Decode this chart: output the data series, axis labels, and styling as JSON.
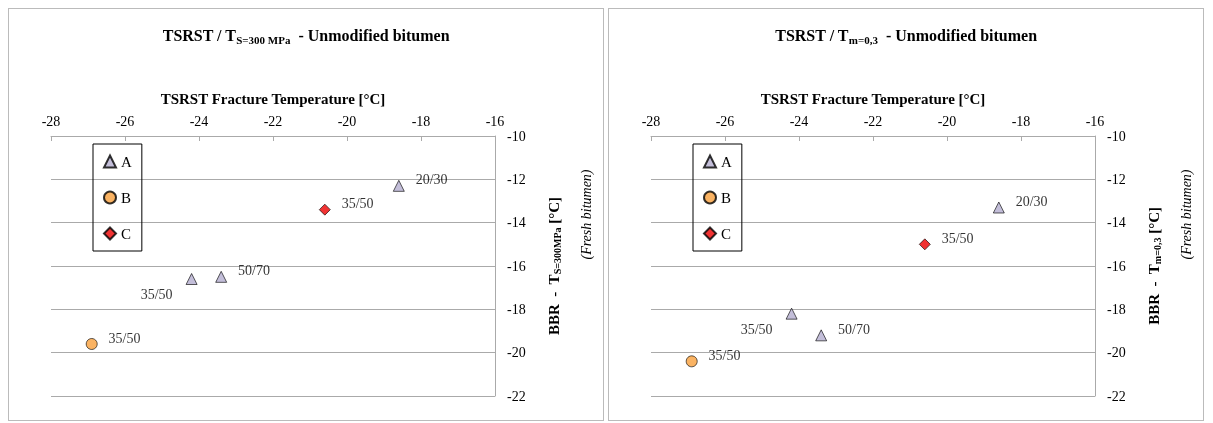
{
  "chart_data": [
    {
      "type": "scatter",
      "title": "TSRST / T$_{S=300 MPa}$  - Unmodified bitumen",
      "xlabel": "TSRST Fracture Temperature [°C]",
      "ylabel": "BBR  -  T$_{S=300MPa}$ [°C]",
      "annotations": [
        "(Fresh bitumen)"
      ],
      "xlim": [
        -28,
        -16
      ],
      "xticks": [
        -28,
        -26,
        -24,
        -22,
        -20,
        -18,
        -16
      ],
      "ylim": [
        -22,
        -10
      ],
      "yticks": [
        -22,
        -20,
        -18,
        -16,
        -14,
        -12,
        -10
      ],
      "grid": "y",
      "legend": "top left",
      "series": [
        {
          "name": "A",
          "color": "#b4aed0",
          "marker": "triangle",
          "x": [
            -24.2,
            -23.4,
            -18.6
          ],
          "values": [
            -16.6,
            -16.5,
            -12.3
          ],
          "value_labels": [
            "35/50",
            "50/70",
            "20/30"
          ]
        },
        {
          "name": "B",
          "color": "#f9a03c",
          "marker": "circle",
          "x": [
            -26.9
          ],
          "values": [
            -19.6
          ],
          "value_labels": [
            "35/50"
          ]
        },
        {
          "name": "C",
          "color": "#ee0000",
          "marker": "diamond",
          "x": [
            -20.6
          ],
          "values": [
            -13.4
          ],
          "value_labels": [
            "35/50"
          ]
        }
      ]
    },
    {
      "type": "scatter",
      "title": "TSRST / T$_{m=0,3}$  - Unmodified bitumen",
      "xlabel": "TSRST Fracture Temperature [°C]",
      "ylabel": "BBR  -  T$_{m=0,3}$ [°C]",
      "annotations": [
        "(Fresh bitumen)"
      ],
      "xlim": [
        -28,
        -16
      ],
      "xticks": [
        -28,
        -26,
        -24,
        -22,
        -20,
        -18,
        -16
      ],
      "ylim": [
        -22,
        -10
      ],
      "yticks": [
        -22,
        -20,
        -18,
        -16,
        -14,
        -12,
        -10
      ],
      "grid": "y",
      "legend": "top left",
      "series": [
        {
          "name": "A",
          "color": "#b4aed0",
          "marker": "triangle",
          "x": [
            -24.2,
            -23.4,
            -18.6
          ],
          "values": [
            -18.2,
            -19.2,
            -13.3
          ],
          "value_labels": [
            "35/50",
            "50/70",
            "20/30"
          ]
        },
        {
          "name": "B",
          "color": "#f9a03c",
          "marker": "circle",
          "x": [
            -26.9
          ],
          "values": [
            -20.4
          ],
          "value_labels": [
            "35/50"
          ]
        },
        {
          "name": "C",
          "color": "#ee0000",
          "marker": "diamond",
          "x": [
            -20.6
          ],
          "values": [
            -15.0
          ],
          "value_labels": [
            "35/50"
          ]
        }
      ]
    }
  ]
}
